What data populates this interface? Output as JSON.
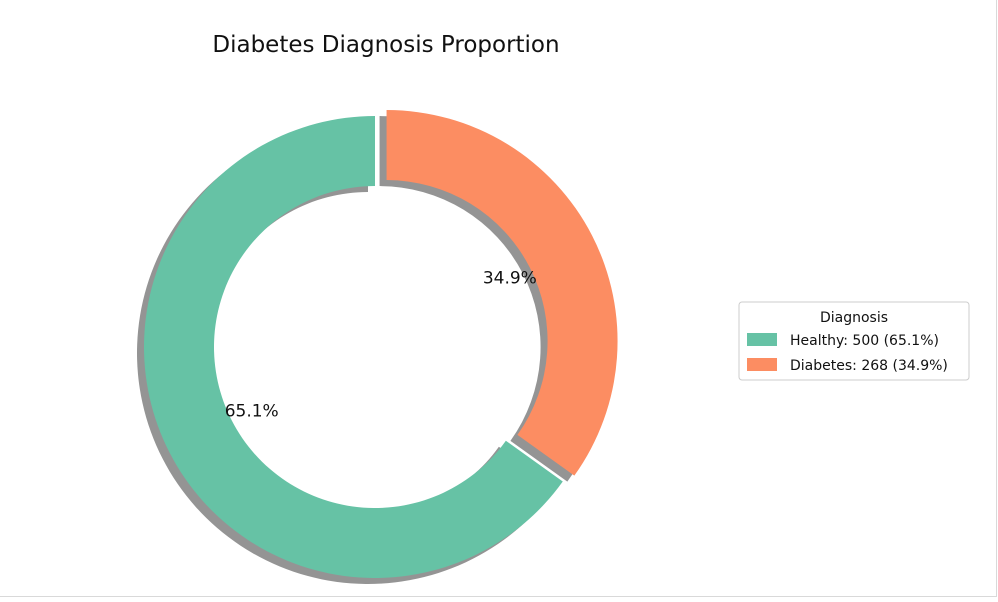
{
  "chart_data": {
    "type": "pie",
    "variant": "donut",
    "title": "Diabetes Diagnosis Proportion",
    "slices": [
      {
        "name": "Healthy",
        "count": 500,
        "percent": 65.1,
        "label": "65.1%",
        "legend_label": "Healthy: 500 (65.1%)",
        "color": "#66c2a5",
        "exploded": false
      },
      {
        "name": "Diabetes",
        "count": 268,
        "percent": 34.9,
        "label": "34.9%",
        "legend_label": "Diabetes: 268 (34.9%)",
        "color": "#fc8d62",
        "exploded": true
      }
    ],
    "legend": {
      "title": "Diagnosis",
      "placement": "right"
    },
    "shadow": true,
    "start_angle_deg": 90
  }
}
